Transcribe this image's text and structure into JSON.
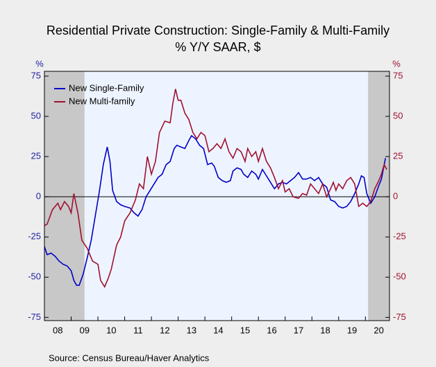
{
  "chart_data": {
    "type": "line",
    "title": "Residential Private Construction: Single-Family & Multi-Family",
    "subtitle": "% Y/Y   SAAR, $",
    "ylabel": "%",
    "y2label": "%",
    "source": "Source:  Census Bureau/Haver Analytics",
    "xlim": [
      2008,
      2020.9
    ],
    "xticks": [
      {
        "value": 2008,
        "label": "08"
      },
      {
        "value": 2009,
        "label": "09"
      },
      {
        "value": 2010,
        "label": "10"
      },
      {
        "value": 2011,
        "label": "11"
      },
      {
        "value": 2012,
        "label": "12"
      },
      {
        "value": 2013,
        "label": "13"
      },
      {
        "value": 2014,
        "label": "14"
      },
      {
        "value": 2015,
        "label": "15"
      },
      {
        "value": 2016,
        "label": "16"
      },
      {
        "value": 2017,
        "label": "17"
      },
      {
        "value": 2018,
        "label": "18"
      },
      {
        "value": 2019,
        "label": "19"
      },
      {
        "value": 2020,
        "label": "20"
      }
    ],
    "ylim": [
      -77,
      78
    ],
    "yticks": [
      -75,
      -50,
      -25,
      0,
      25,
      50,
      75
    ],
    "y2lim": [
      -77,
      78
    ],
    "y2ticks": [
      -75,
      -50,
      -25,
      0,
      25,
      50,
      75
    ],
    "recessions": [
      [
        2008,
        2009.5
      ],
      [
        2020.1,
        2020.9
      ]
    ],
    "legend": "upper left",
    "series": [
      {
        "name": "New Single-Family",
        "color": "#0000c8",
        "x": [
          2008.0,
          2008.1,
          2008.25,
          2008.4,
          2008.55,
          2008.7,
          2008.85,
          2009.0,
          2009.1,
          2009.2,
          2009.3,
          2009.45,
          2009.6,
          2009.75,
          2009.9,
          2010.05,
          2010.2,
          2010.35,
          2010.45,
          2010.55,
          2010.7,
          2010.85,
          2011.0,
          2011.2,
          2011.35,
          2011.5,
          2011.65,
          2011.8,
          2011.95,
          2012.1,
          2012.25,
          2012.4,
          2012.55,
          2012.7,
          2012.85,
          2012.95,
          2013.1,
          2013.25,
          2013.4,
          2013.5,
          2013.65,
          2013.8,
          2013.95,
          2014.1,
          2014.25,
          2014.35,
          2014.5,
          2014.65,
          2014.8,
          2014.95,
          2015.05,
          2015.2,
          2015.35,
          2015.45,
          2015.6,
          2015.75,
          2015.9,
          2016.0,
          2016.15,
          2016.3,
          2016.45,
          2016.6,
          2016.75,
          2016.9,
          2017.05,
          2017.2,
          2017.35,
          2017.5,
          2017.65,
          2017.8,
          2017.95,
          2018.1,
          2018.25,
          2018.4,
          2018.55,
          2018.7,
          2018.85,
          2019.0,
          2019.15,
          2019.3,
          2019.45,
          2019.6,
          2019.75,
          2019.85,
          2019.95,
          2020.05,
          2020.2,
          2020.35,
          2020.5,
          2020.6,
          2020.75
        ],
        "values": [
          -31,
          -36,
          -35,
          -37,
          -40,
          -42,
          -43,
          -46,
          -52,
          -55,
          -55,
          -48,
          -38,
          -27,
          -12,
          3,
          20,
          31,
          22,
          4,
          -3,
          -5,
          -6,
          -7,
          -10,
          -12,
          -8,
          0,
          4,
          8,
          12,
          14,
          20,
          22,
          30,
          32,
          31,
          30,
          35,
          38,
          36,
          32,
          30,
          20,
          21,
          19,
          12,
          10,
          9,
          10,
          16,
          18,
          17,
          14,
          12,
          16,
          14,
          11,
          17,
          13,
          9,
          5,
          8,
          9,
          8,
          10,
          12,
          15,
          11,
          11,
          12,
          10,
          12,
          8,
          6,
          -2,
          -3,
          -6,
          -7,
          -6,
          -3,
          2,
          8,
          13,
          12,
          2,
          -4,
          0,
          7,
          11,
          24
        ]
      },
      {
        "name": "New Multi-family",
        "color": "#a01030",
        "x": [
          2008.0,
          2008.1,
          2008.3,
          2008.5,
          2008.6,
          2008.75,
          2008.9,
          2009.0,
          2009.1,
          2009.25,
          2009.4,
          2009.6,
          2009.8,
          2010.0,
          2010.1,
          2010.25,
          2010.4,
          2010.5,
          2010.7,
          2010.85,
          2011.0,
          2011.2,
          2011.4,
          2011.55,
          2011.7,
          2011.85,
          2012.0,
          2012.15,
          2012.3,
          2012.5,
          2012.7,
          2012.8,
          2012.9,
          2013.0,
          2013.1,
          2013.25,
          2013.4,
          2013.55,
          2013.7,
          2013.85,
          2014.0,
          2014.15,
          2014.3,
          2014.45,
          2014.6,
          2014.75,
          2014.9,
          2015.05,
          2015.2,
          2015.35,
          2015.5,
          2015.6,
          2015.75,
          2015.9,
          2016.0,
          2016.15,
          2016.3,
          2016.45,
          2016.6,
          2016.75,
          2016.9,
          2017.0,
          2017.15,
          2017.3,
          2017.5,
          2017.65,
          2017.8,
          2017.95,
          2018.1,
          2018.25,
          2018.4,
          2018.55,
          2018.7,
          2018.8,
          2018.9,
          2019.0,
          2019.15,
          2019.3,
          2019.45,
          2019.6,
          2019.75,
          2019.9,
          2020.05,
          2020.2,
          2020.35,
          2020.5,
          2020.6,
          2020.7,
          2020.8
        ],
        "values": [
          -18,
          -17,
          -8,
          -4,
          -8,
          -3,
          -6,
          -10,
          2,
          -10,
          -27,
          -32,
          -40,
          -42,
          -52,
          -56,
          -50,
          -45,
          -30,
          -25,
          -15,
          -10,
          -2,
          8,
          5,
          25,
          14,
          22,
          40,
          47,
          46,
          58,
          67,
          60,
          60,
          52,
          48,
          40,
          36,
          40,
          38,
          28,
          30,
          33,
          30,
          36,
          28,
          24,
          30,
          28,
          22,
          30,
          25,
          28,
          22,
          30,
          22,
          18,
          12,
          5,
          10,
          3,
          5,
          0,
          -1,
          2,
          1,
          8,
          5,
          2,
          8,
          0,
          5,
          9,
          4,
          8,
          5,
          10,
          12,
          8,
          -6,
          -4,
          -6,
          -3,
          5,
          10,
          14,
          20,
          17
        ]
      }
    ]
  }
}
